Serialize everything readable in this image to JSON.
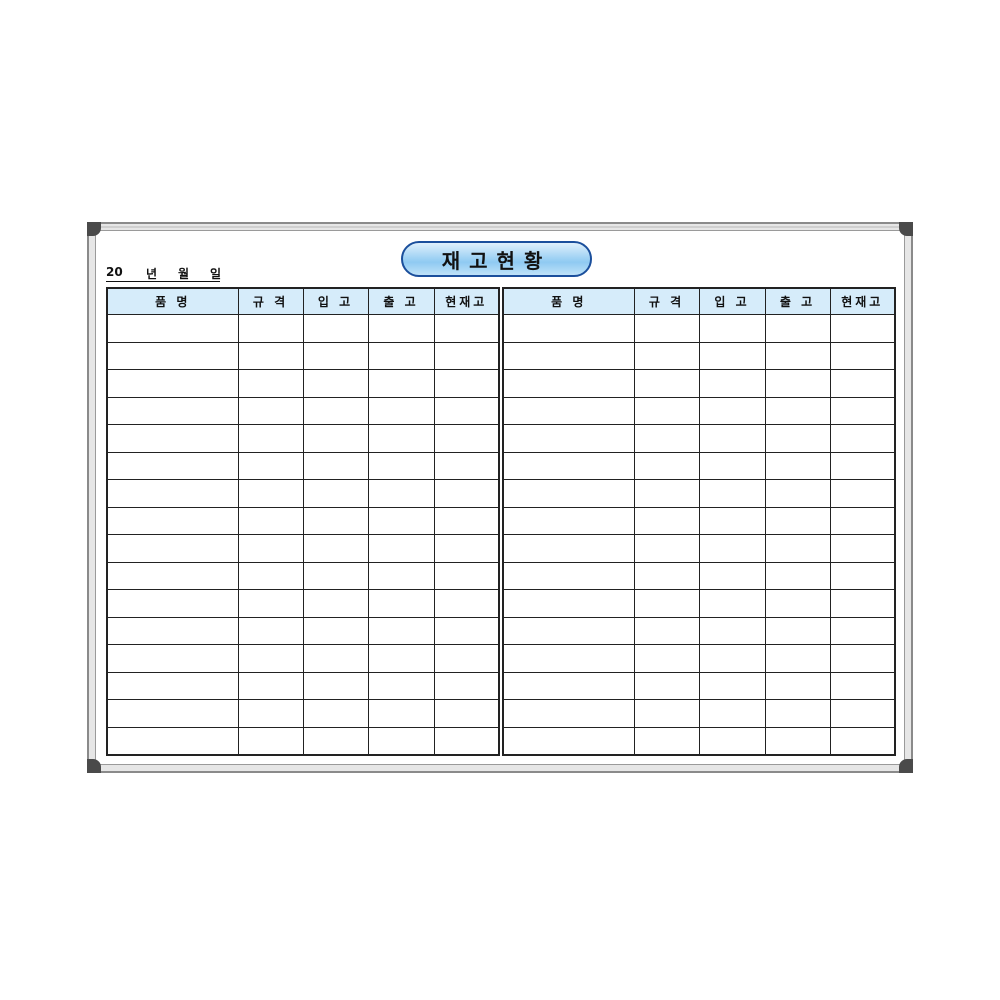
{
  "board": {
    "title": "재고현황",
    "date": {
      "year_prefix": "20",
      "year": "년",
      "month": "월",
      "day": "일"
    },
    "columns": [
      "품 명",
      "규 격",
      "입 고",
      "출 고",
      "현재고"
    ],
    "colors": {
      "header_fill": "#d6ecfa",
      "title_border": "#1b4f9c",
      "frame": "#8a8a8a",
      "corner": "#4a4a4a"
    }
  }
}
